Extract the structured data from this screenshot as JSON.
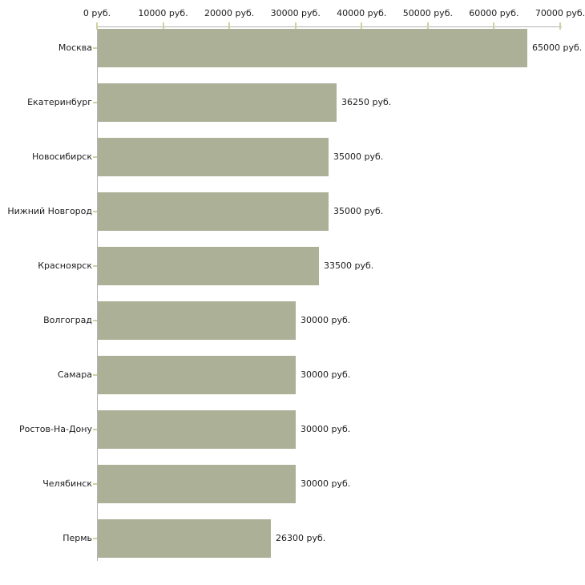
{
  "chart_data": {
    "type": "bar",
    "orientation": "horizontal",
    "title": "",
    "xlabel": "",
    "ylabel": "",
    "unit": "руб.",
    "categories": [
      "Москва",
      "Екатеринбург",
      "Новосибирск",
      "Нижний Новгород",
      "Красноярск",
      "Волгоград",
      "Самара",
      "Ростов-На-Дону",
      "Челябинск",
      "Пермь"
    ],
    "values": [
      65000,
      36250,
      35000,
      35000,
      33500,
      30000,
      30000,
      30000,
      30000,
      26300
    ],
    "value_labels": [
      "65000 руб.",
      "36250 руб.",
      "35000 руб.",
      "35000 руб.",
      "33500 руб.",
      "30000 руб.",
      "30000 руб.",
      "30000 руб.",
      "30000 руб.",
      "26300 руб."
    ],
    "x_tick_values": [
      0,
      10000,
      20000,
      30000,
      40000,
      50000,
      60000,
      70000
    ],
    "x_tick_labels": [
      "0 руб.",
      "10000 руб.",
      "20000 руб.",
      "30000 руб.",
      "40000 руб.",
      "50000 руб.",
      "60000 руб.",
      "70000 руб."
    ],
    "xlim": [
      0,
      70000
    ],
    "grid": false,
    "legend": "none",
    "colors": {
      "bar": "#abb096",
      "axis_line": "#b4b4b4",
      "tick_mark": "#d0d0a0",
      "text": "#1c1c1c",
      "background": "#ffffff"
    }
  }
}
